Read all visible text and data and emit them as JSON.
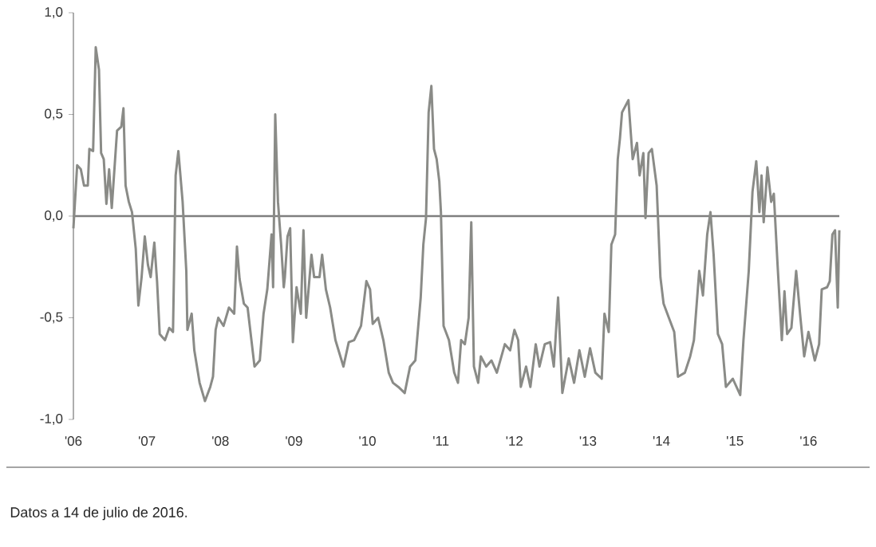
{
  "chart_data": {
    "type": "line",
    "x": [
      2006.0,
      2006.051,
      2006.101,
      2006.145,
      2006.196,
      2006.217,
      2006.268,
      2006.304,
      2006.348,
      2006.377,
      2006.413,
      2006.449,
      2006.486,
      2006.522,
      2006.558,
      2006.594,
      2006.652,
      2006.681,
      2006.71,
      2006.754,
      2006.797,
      2006.848,
      2006.884,
      2006.928,
      2006.971,
      2007.014,
      2007.051,
      2007.101,
      2007.138,
      2007.174,
      2007.246,
      2007.304,
      2007.355,
      2007.391,
      2007.428,
      2007.486,
      2007.536,
      2007.551,
      2007.609,
      2007.645,
      2007.717,
      2007.79,
      2007.862,
      2007.899,
      2007.935,
      2007.971,
      2008.043,
      2008.116,
      2008.188,
      2008.225,
      2008.261,
      2008.319,
      2008.37,
      2008.464,
      2008.536,
      2008.587,
      2008.638,
      2008.696,
      2008.717,
      2008.746,
      2008.783,
      2008.826,
      2008.862,
      2008.877,
      2008.913,
      2008.949,
      2008.986,
      2009.036,
      2009.094,
      2009.13,
      2009.167,
      2009.239,
      2009.275,
      2009.348,
      2009.384,
      2009.435,
      2009.493,
      2009.565,
      2009.674,
      2009.746,
      2009.819,
      2009.913,
      2009.986,
      2010.036,
      2010.072,
      2010.145,
      2010.217,
      2010.29,
      2010.348,
      2010.42,
      2010.507,
      2010.58,
      2010.652,
      2010.725,
      2010.761,
      2010.797,
      2010.833,
      2010.87,
      2010.906,
      2010.942,
      2010.978,
      2011.0,
      2011.036,
      2011.109,
      2011.181,
      2011.232,
      2011.275,
      2011.326,
      2011.377,
      2011.413,
      2011.449,
      2011.507,
      2011.543,
      2011.616,
      2011.688,
      2011.761,
      2011.87,
      2011.942,
      2012.0,
      2012.051,
      2012.087,
      2012.159,
      2012.217,
      2012.29,
      2012.341,
      2012.413,
      2012.486,
      2012.536,
      2012.594,
      2012.652,
      2012.739,
      2012.812,
      2012.884,
      2012.957,
      2013.029,
      2013.101,
      2013.188,
      2013.225,
      2013.283,
      2013.319,
      2013.37,
      2013.406,
      2013.435,
      2013.464,
      2013.551,
      2013.609,
      2013.667,
      2013.703,
      2013.754,
      2013.783,
      2013.826,
      2013.87,
      2013.935,
      2013.986,
      2014.029,
      2014.101,
      2014.174,
      2014.225,
      2014.319,
      2014.391,
      2014.442,
      2014.514,
      2014.565,
      2014.623,
      2014.667,
      2014.71,
      2014.768,
      2014.826,
      2014.877,
      2014.971,
      2015.072,
      2015.116,
      2015.188,
      2015.239,
      2015.29,
      2015.333,
      2015.362,
      2015.391,
      2015.442,
      2015.493,
      2015.529,
      2015.58,
      2015.638,
      2015.674,
      2015.71,
      2015.768,
      2015.833,
      2015.891,
      2015.942,
      2016.0,
      2016.087,
      2016.145,
      2016.181,
      2016.254,
      2016.29,
      2016.326,
      2016.362,
      2016.399,
      2016.42
    ],
    "series": [
      {
        "color": "#8a8b87",
        "values": [
          -0.06,
          0.25,
          0.23,
          0.15,
          0.15,
          0.33,
          0.32,
          0.83,
          0.72,
          0.31,
          0.28,
          0.06,
          0.23,
          0.04,
          0.23,
          0.42,
          0.44,
          0.53,
          0.15,
          0.07,
          0.02,
          -0.16,
          -0.44,
          -0.3,
          -0.1,
          -0.24,
          -0.3,
          -0.13,
          -0.32,
          -0.58,
          -0.61,
          -0.55,
          -0.57,
          0.2,
          0.32,
          0.07,
          -0.27,
          -0.56,
          -0.48,
          -0.66,
          -0.82,
          -0.91,
          -0.84,
          -0.79,
          -0.56,
          -0.5,
          -0.54,
          -0.45,
          -0.48,
          -0.15,
          -0.31,
          -0.43,
          -0.45,
          -0.74,
          -0.71,
          -0.48,
          -0.36,
          -0.09,
          -0.35,
          0.5,
          0.07,
          -0.14,
          -0.35,
          -0.3,
          -0.1,
          -0.06,
          -0.62,
          -0.35,
          -0.48,
          -0.07,
          -0.5,
          -0.19,
          -0.3,
          -0.3,
          -0.19,
          -0.36,
          -0.45,
          -0.61,
          -0.74,
          -0.62,
          -0.61,
          -0.54,
          -0.32,
          -0.36,
          -0.53,
          -0.5,
          -0.61,
          -0.77,
          -0.82,
          -0.84,
          -0.87,
          -0.74,
          -0.71,
          -0.4,
          -0.14,
          -0.01,
          0.51,
          0.64,
          0.33,
          0.28,
          0.17,
          0.02,
          -0.54,
          -0.61,
          -0.77,
          -0.82,
          -0.61,
          -0.63,
          -0.5,
          -0.03,
          -0.74,
          -0.82,
          -0.69,
          -0.74,
          -0.71,
          -0.77,
          -0.63,
          -0.66,
          -0.56,
          -0.61,
          -0.84,
          -0.74,
          -0.84,
          -0.63,
          -0.74,
          -0.63,
          -0.62,
          -0.74,
          -0.4,
          -0.87,
          -0.7,
          -0.82,
          -0.66,
          -0.79,
          -0.65,
          -0.77,
          -0.8,
          -0.48,
          -0.57,
          -0.14,
          -0.09,
          0.28,
          0.38,
          0.51,
          0.57,
          0.28,
          0.36,
          0.2,
          0.31,
          -0.01,
          0.31,
          0.33,
          0.15,
          -0.3,
          -0.43,
          -0.5,
          -0.57,
          -0.79,
          -0.77,
          -0.69,
          -0.61,
          -0.27,
          -0.39,
          -0.09,
          0.02,
          -0.19,
          -0.58,
          -0.63,
          -0.84,
          -0.8,
          -0.88,
          -0.61,
          -0.27,
          0.12,
          0.27,
          0.02,
          0.2,
          -0.03,
          0.24,
          0.07,
          0.11,
          -0.24,
          -0.61,
          -0.37,
          -0.58,
          -0.55,
          -0.27,
          -0.5,
          -0.69,
          -0.57,
          -0.71,
          -0.63,
          -0.36,
          -0.35,
          -0.32,
          -0.09,
          -0.07,
          -0.45,
          -0.07
        ]
      }
    ],
    "xlim": [
      2006,
      2016.42
    ],
    "xticks": [
      {
        "value": 2006,
        "label": "'06"
      },
      {
        "value": 2007,
        "label": "'07"
      },
      {
        "value": 2008,
        "label": "'08"
      },
      {
        "value": 2009,
        "label": "'09"
      },
      {
        "value": 2010,
        "label": "'10"
      },
      {
        "value": 2011,
        "label": "'11"
      },
      {
        "value": 2012,
        "label": "'12"
      },
      {
        "value": 2013,
        "label": "'13"
      },
      {
        "value": 2014,
        "label": "'14"
      },
      {
        "value": 2015,
        "label": "'15"
      },
      {
        "value": 2016,
        "label": "'16"
      }
    ],
    "ylim": [
      -1,
      1
    ],
    "yticks": [
      {
        "value": -1,
        "label": "-1,0"
      },
      {
        "value": -0.5,
        "label": "-0,5"
      },
      {
        "value": 0,
        "label": "0,0"
      },
      {
        "value": 0.5,
        "label": "0,5"
      },
      {
        "value": 1,
        "label": "1,0"
      }
    ],
    "ref_lines": [
      {
        "axis": "y",
        "value": 0,
        "color": "#7f7f7f"
      }
    ],
    "annotations": [
      "Datos a 14 de julio de 2016."
    ],
    "grid": false,
    "marker": "none",
    "line_style": "solid"
  }
}
